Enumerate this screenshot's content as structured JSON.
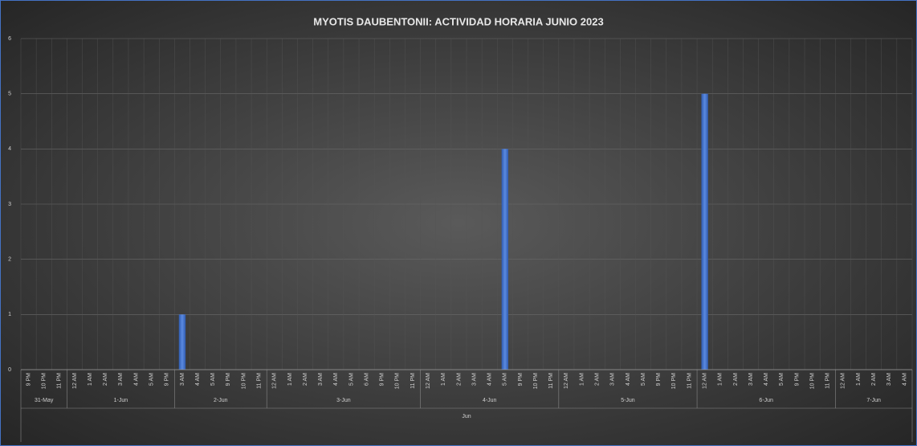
{
  "chart_data": {
    "type": "bar",
    "title": "MYOTIS DAUBENTONII: ACTIVIDAD HORARIA JUNIO 2023",
    "color": "#4472c4",
    "grid": true,
    "ylim": [
      0,
      6
    ],
    "yticks": [
      0,
      1,
      2,
      3,
      4,
      5,
      6
    ],
    "group_label": "Jun",
    "groups": [
      {
        "name": "31-May",
        "categories": [
          "9 PM",
          "10 PM",
          "11 PM"
        ],
        "values": [
          0,
          0,
          0
        ]
      },
      {
        "name": "1-Jun",
        "categories": [
          "12 AM",
          "1 AM",
          "2 AM",
          "3 AM",
          "4 AM",
          "5 AM",
          "9 PM"
        ],
        "values": [
          0,
          0,
          0,
          0,
          0,
          0,
          0
        ]
      },
      {
        "name": "2-Jun",
        "categories": [
          "3 AM",
          "4 AM",
          "5 AM",
          "9 PM",
          "10 PM",
          "11 PM"
        ],
        "values": [
          1,
          0,
          0,
          0,
          0,
          0
        ]
      },
      {
        "name": "3-Jun",
        "categories": [
          "12 AM",
          "1 AM",
          "2 AM",
          "3 AM",
          "4 AM",
          "5 AM",
          "6 AM",
          "9 PM",
          "10 PM",
          "11 PM"
        ],
        "values": [
          0,
          0,
          0,
          0,
          0,
          0,
          0,
          0,
          0,
          0
        ]
      },
      {
        "name": "4-Jun",
        "categories": [
          "12 AM",
          "1 AM",
          "2 AM",
          "3 AM",
          "4 AM",
          "5 AM",
          "9 PM",
          "10 PM",
          "11 PM"
        ],
        "values": [
          0,
          0,
          0,
          0,
          0,
          4,
          0,
          0,
          0
        ]
      },
      {
        "name": "5-Jun",
        "categories": [
          "12 AM",
          "1 AM",
          "2 AM",
          "3 AM",
          "4 AM",
          "5 AM",
          "9 PM",
          "10 PM",
          "11 PM"
        ],
        "values": [
          0,
          0,
          0,
          0,
          0,
          0,
          0,
          0,
          0
        ]
      },
      {
        "name": "6-Jun",
        "categories": [
          "12 AM",
          "1 AM",
          "2 AM",
          "3 AM",
          "4 AM",
          "5 AM",
          "9 PM",
          "10 PM",
          "11 PM"
        ],
        "values": [
          5,
          0,
          0,
          0,
          0,
          0,
          0,
          0,
          0
        ]
      },
      {
        "name": "7-Jun",
        "categories": [
          "12 AM",
          "1 AM",
          "2 AM",
          "3 AM",
          "4 AM"
        ],
        "values": [
          0,
          0,
          0,
          0,
          0
        ]
      }
    ]
  }
}
